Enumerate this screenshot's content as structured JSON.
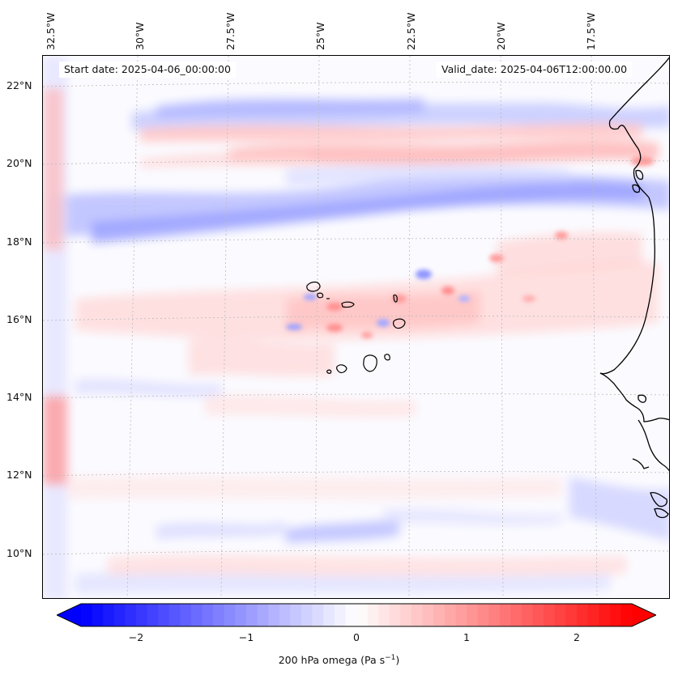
{
  "header": {
    "start_date": "Start date: 2025-04-06_00:00:00",
    "valid_date": "Valid_date: 2025-04-06T12:00:00.00"
  },
  "axes": {
    "longitude_labels": [
      "32.5°W",
      "30°W",
      "27.5°W",
      "25°W",
      "22.5°W",
      "20°W",
      "17.5°W"
    ],
    "latitude_labels": [
      "22°N",
      "20°N",
      "18°N",
      "16°N",
      "14°N",
      "12°N",
      "10°N"
    ]
  },
  "colorbar": {
    "ticks": [
      "−2",
      "−1",
      "0",
      "1",
      "2"
    ],
    "tick_values": [
      -2,
      -1,
      0,
      1,
      2
    ],
    "range": [
      -2.5,
      2.5
    ],
    "label_prefix": "200 hPa omega (Pa s",
    "label_exp": "−1",
    "label_suffix": ")",
    "colors": {
      "negative": "#0000ff",
      "zero": "#ffffff",
      "positive": "#ff0000"
    }
  },
  "map": {
    "projection_extent": {
      "lon": [
        -33,
        -15
      ],
      "lat": [
        9,
        23
      ]
    },
    "coastline_color": "#000000",
    "gridline_color": "#bbbbbb"
  }
}
